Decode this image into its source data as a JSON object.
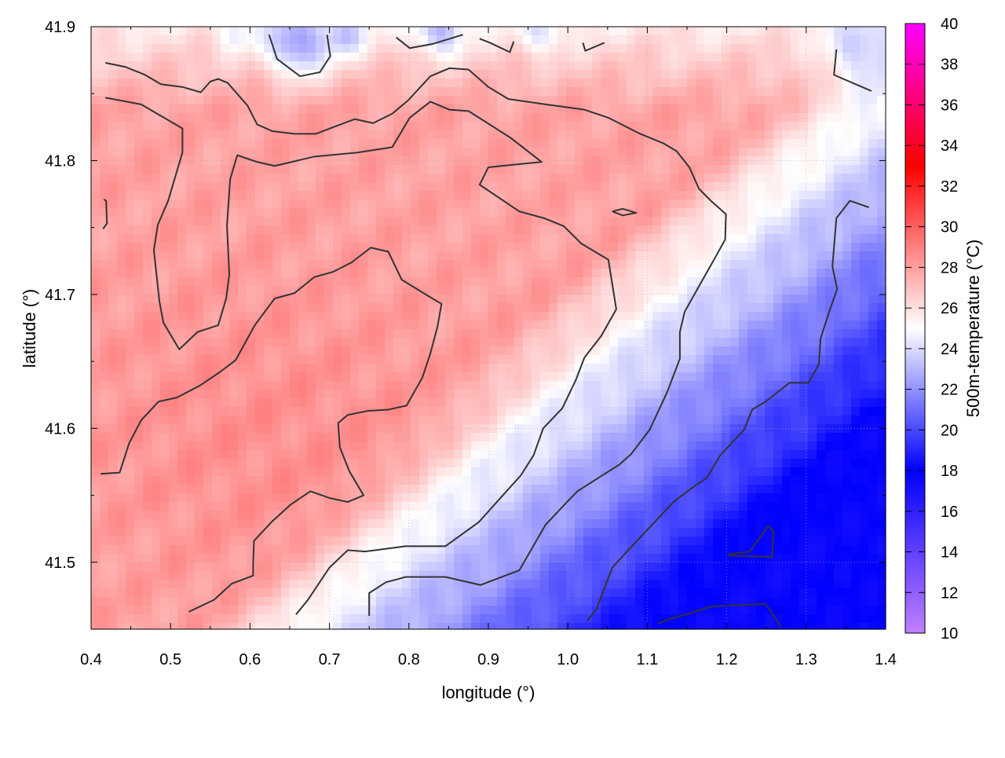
{
  "chart_data": {
    "type": "heatmap",
    "title": "",
    "xlabel": "longitude (°)",
    "ylabel": "latitude (°)",
    "colorbar_label": "500m-temperature (°C)",
    "xlim": [
      0.4,
      1.4
    ],
    "ylim": [
      41.45,
      41.9
    ],
    "xticks": [
      "0.4",
      "0.5",
      "0.6",
      "0.7",
      "0.8",
      "0.9",
      "1.0",
      "1.1",
      "1.2",
      "1.3",
      "1.4"
    ],
    "yticks": [
      "41.5",
      "41.6",
      "41.7",
      "41.8",
      "41.9"
    ],
    "colorbar_range": [
      10,
      40
    ],
    "colorbar_ticks": [
      "10",
      "12",
      "14",
      "16",
      "18",
      "20",
      "22",
      "24",
      "26",
      "28",
      "30",
      "32",
      "34",
      "36",
      "38",
      "40"
    ],
    "colormap": [
      {
        "value": 10,
        "color": "#c080ff"
      },
      {
        "value": 18,
        "color": "#0000ff"
      },
      {
        "value": 25,
        "color": "#ffffff"
      },
      {
        "value": 33,
        "color": "#ff0000"
      },
      {
        "value": 40,
        "color": "#ff00ff"
      }
    ],
    "grid": true,
    "contour_color": "#333333",
    "contours": [
      [
        [
          0.412,
          41.566
        ],
        [
          0.436,
          41.567
        ],
        [
          0.448,
          41.589
        ],
        [
          0.463,
          41.606
        ],
        [
          0.485,
          41.62
        ],
        [
          0.508,
          41.623
        ],
        [
          0.537,
          41.632
        ],
        [
          0.562,
          41.642
        ],
        [
          0.582,
          41.651
        ],
        [
          0.606,
          41.677
        ],
        [
          0.631,
          41.697
        ],
        [
          0.656,
          41.701
        ],
        [
          0.681,
          41.713
        ],
        [
          0.705,
          41.717
        ],
        [
          0.728,
          41.724
        ],
        [
          0.752,
          41.735
        ],
        [
          0.774,
          41.732
        ],
        [
          0.791,
          41.711
        ],
        [
          0.824,
          41.699
        ],
        [
          0.841,
          41.693
        ],
        [
          0.836,
          41.676
        ],
        [
          0.827,
          41.656
        ],
        [
          0.817,
          41.638
        ],
        [
          0.797,
          41.617
        ],
        [
          0.774,
          41.614
        ],
        [
          0.748,
          41.613
        ],
        [
          0.723,
          41.61
        ],
        [
          0.711,
          41.604
        ],
        [
          0.713,
          41.586
        ],
        [
          0.725,
          41.568
        ],
        [
          0.743,
          41.55
        ],
        [
          0.723,
          41.545
        ],
        [
          0.7,
          41.548
        ],
        [
          0.676,
          41.553
        ],
        [
          0.651,
          41.543
        ],
        [
          0.627,
          41.53
        ],
        [
          0.605,
          41.516
        ],
        [
          0.604,
          41.499
        ],
        [
          0.604,
          41.49
        ],
        [
          0.577,
          41.484
        ],
        [
          0.555,
          41.472
        ],
        [
          0.523,
          41.463
        ]
      ],
      [
        [
          0.418,
          41.847
        ],
        [
          0.463,
          41.842
        ],
        [
          0.515,
          41.824
        ],
        [
          0.515,
          41.806
        ],
        [
          0.497,
          41.77
        ],
        [
          0.484,
          41.752
        ],
        [
          0.479,
          41.733
        ],
        [
          0.486,
          41.695
        ],
        [
          0.491,
          41.679
        ],
        [
          0.511,
          41.659
        ],
        [
          0.534,
          41.672
        ],
        [
          0.56,
          41.677
        ],
        [
          0.57,
          41.697
        ],
        [
          0.574,
          41.715
        ],
        [
          0.571,
          41.751
        ],
        [
          0.575,
          41.786
        ],
        [
          0.584,
          41.804
        ],
        [
          0.609,
          41.799
        ],
        [
          0.631,
          41.796
        ],
        [
          0.681,
          41.803
        ],
        [
          0.735,
          41.806
        ],
        [
          0.779,
          41.81
        ],
        [
          0.801,
          41.832
        ],
        [
          0.827,
          41.844
        ],
        [
          0.851,
          41.838
        ],
        [
          0.875,
          41.837
        ],
        [
          0.928,
          41.817
        ],
        [
          0.967,
          41.799
        ],
        [
          0.9,
          41.795
        ],
        [
          0.889,
          41.782
        ],
        [
          0.939,
          41.762
        ],
        [
          0.97,
          41.757
        ],
        [
          0.995,
          41.751
        ],
        [
          1.017,
          41.738
        ],
        [
          1.051,
          41.726
        ],
        [
          1.061,
          41.689
        ],
        [
          1.042,
          41.669
        ],
        [
          1.021,
          41.653
        ],
        [
          1.01,
          41.636
        ],
        [
          0.993,
          41.615
        ],
        [
          0.969,
          41.6
        ],
        [
          0.957,
          41.58
        ],
        [
          0.941,
          41.565
        ],
        [
          0.888,
          41.53
        ],
        [
          0.846,
          41.512
        ],
        [
          0.796,
          41.512
        ],
        [
          0.745,
          41.508
        ],
        [
          0.723,
          41.509
        ],
        [
          0.7,
          41.496
        ],
        [
          0.673,
          41.472
        ],
        [
          0.658,
          41.461
        ]
      ],
      [
        [
          0.418,
          41.873
        ],
        [
          0.443,
          41.87
        ],
        [
          0.468,
          41.864
        ],
        [
          0.488,
          41.857
        ],
        [
          0.515,
          41.855
        ],
        [
          0.538,
          41.851
        ],
        [
          0.55,
          41.859
        ],
        [
          0.56,
          41.861
        ],
        [
          0.572,
          41.858
        ],
        [
          0.597,
          41.841
        ],
        [
          0.609,
          41.827
        ],
        [
          0.628,
          41.822
        ],
        [
          0.656,
          41.82
        ],
        [
          0.683,
          41.82
        ],
        [
          0.705,
          41.825
        ],
        [
          0.732,
          41.831
        ],
        [
          0.755,
          41.828
        ],
        [
          0.779,
          41.835
        ],
        [
          0.799,
          41.845
        ],
        [
          0.827,
          41.863
        ],
        [
          0.851,
          41.869
        ],
        [
          0.875,
          41.868
        ],
        [
          0.9,
          41.855
        ],
        [
          0.925,
          41.846
        ],
        [
          0.972,
          41.842
        ],
        [
          1.021,
          41.838
        ],
        [
          1.051,
          41.832
        ],
        [
          1.091,
          41.82
        ],
        [
          1.12,
          41.813
        ],
        [
          1.137,
          41.807
        ],
        [
          1.153,
          41.795
        ],
        [
          1.165,
          41.779
        ],
        [
          1.18,
          41.77
        ],
        [
          1.199,
          41.76
        ],
        [
          1.198,
          41.741
        ],
        [
          1.184,
          41.726
        ],
        [
          1.163,
          41.704
        ],
        [
          1.147,
          41.687
        ],
        [
          1.141,
          41.672
        ],
        [
          1.141,
          41.652
        ],
        [
          1.125,
          41.627
        ],
        [
          1.103,
          41.599
        ],
        [
          1.08,
          41.581
        ],
        [
          1.065,
          41.573
        ],
        [
          1.041,
          41.564
        ],
        [
          1.012,
          41.553
        ],
        [
          0.999,
          41.545
        ],
        [
          0.972,
          41.528
        ],
        [
          0.939,
          41.494
        ],
        [
          0.89,
          41.483
        ],
        [
          0.846,
          41.489
        ],
        [
          0.796,
          41.489
        ],
        [
          0.771,
          41.485
        ],
        [
          0.75,
          41.477
        ],
        [
          0.75,
          41.46
        ]
      ],
      [
        [
          1.024,
          41.456
        ],
        [
          1.036,
          41.465
        ],
        [
          1.056,
          41.496
        ],
        [
          1.076,
          41.509
        ],
        [
          1.106,
          41.528
        ],
        [
          1.133,
          41.545
        ],
        [
          1.155,
          41.555
        ],
        [
          1.175,
          41.563
        ],
        [
          1.192,
          41.58
        ],
        [
          1.222,
          41.599
        ],
        [
          1.232,
          41.614
        ],
        [
          1.249,
          41.62
        ],
        [
          1.279,
          41.634
        ],
        [
          1.303,
          41.634
        ],
        [
          1.316,
          41.648
        ],
        [
          1.318,
          41.667
        ],
        [
          1.33,
          41.689
        ],
        [
          1.339,
          41.704
        ],
        [
          1.333,
          41.721
        ],
        [
          1.338,
          41.757
        ],
        [
          1.355,
          41.77
        ],
        [
          1.379,
          41.765
        ]
      ],
      [
        [
          1.113,
          41.454
        ],
        [
          1.13,
          41.458
        ],
        [
          1.155,
          41.462
        ],
        [
          1.18,
          41.467
        ],
        [
          1.249,
          41.469
        ],
        [
          1.268,
          41.452
        ]
      ],
      [
        [
          1.202,
          41.506
        ],
        [
          1.229,
          41.508
        ],
        [
          1.252,
          41.527
        ],
        [
          1.259,
          41.523
        ],
        [
          1.257,
          41.504
        ],
        [
          1.202,
          41.505
        ]
      ],
      [
        [
          1.056,
          41.762
        ],
        [
          1.069,
          41.764
        ],
        [
          1.086,
          41.761
        ],
        [
          1.069,
          41.759
        ],
        [
          1.056,
          41.762
        ]
      ],
      [
        [
          0.416,
          41.771
        ],
        [
          0.419,
          41.77
        ],
        [
          0.42,
          41.753
        ],
        [
          0.415,
          41.749
        ]
      ],
      [
        [
          0.624,
          41.894
        ],
        [
          0.634,
          41.876
        ],
        [
          0.663,
          41.863
        ],
        [
          0.688,
          41.866
        ],
        [
          0.701,
          41.878
        ],
        [
          0.697,
          41.894
        ]
      ],
      [
        [
          0.784,
          41.892
        ],
        [
          0.801,
          41.884
        ],
        [
          0.829,
          41.887
        ],
        [
          0.868,
          41.894
        ]
      ],
      [
        [
          0.889,
          41.891
        ],
        [
          0.902,
          41.888
        ],
        [
          0.927,
          41.881
        ],
        [
          0.932,
          41.889
        ]
      ],
      [
        [
          1.019,
          41.888
        ],
        [
          1.022,
          41.882
        ],
        [
          1.046,
          41.888
        ]
      ],
      [
        [
          1.338,
          41.883
        ],
        [
          1.335,
          41.864
        ],
        [
          1.382,
          41.852
        ]
      ]
    ]
  }
}
